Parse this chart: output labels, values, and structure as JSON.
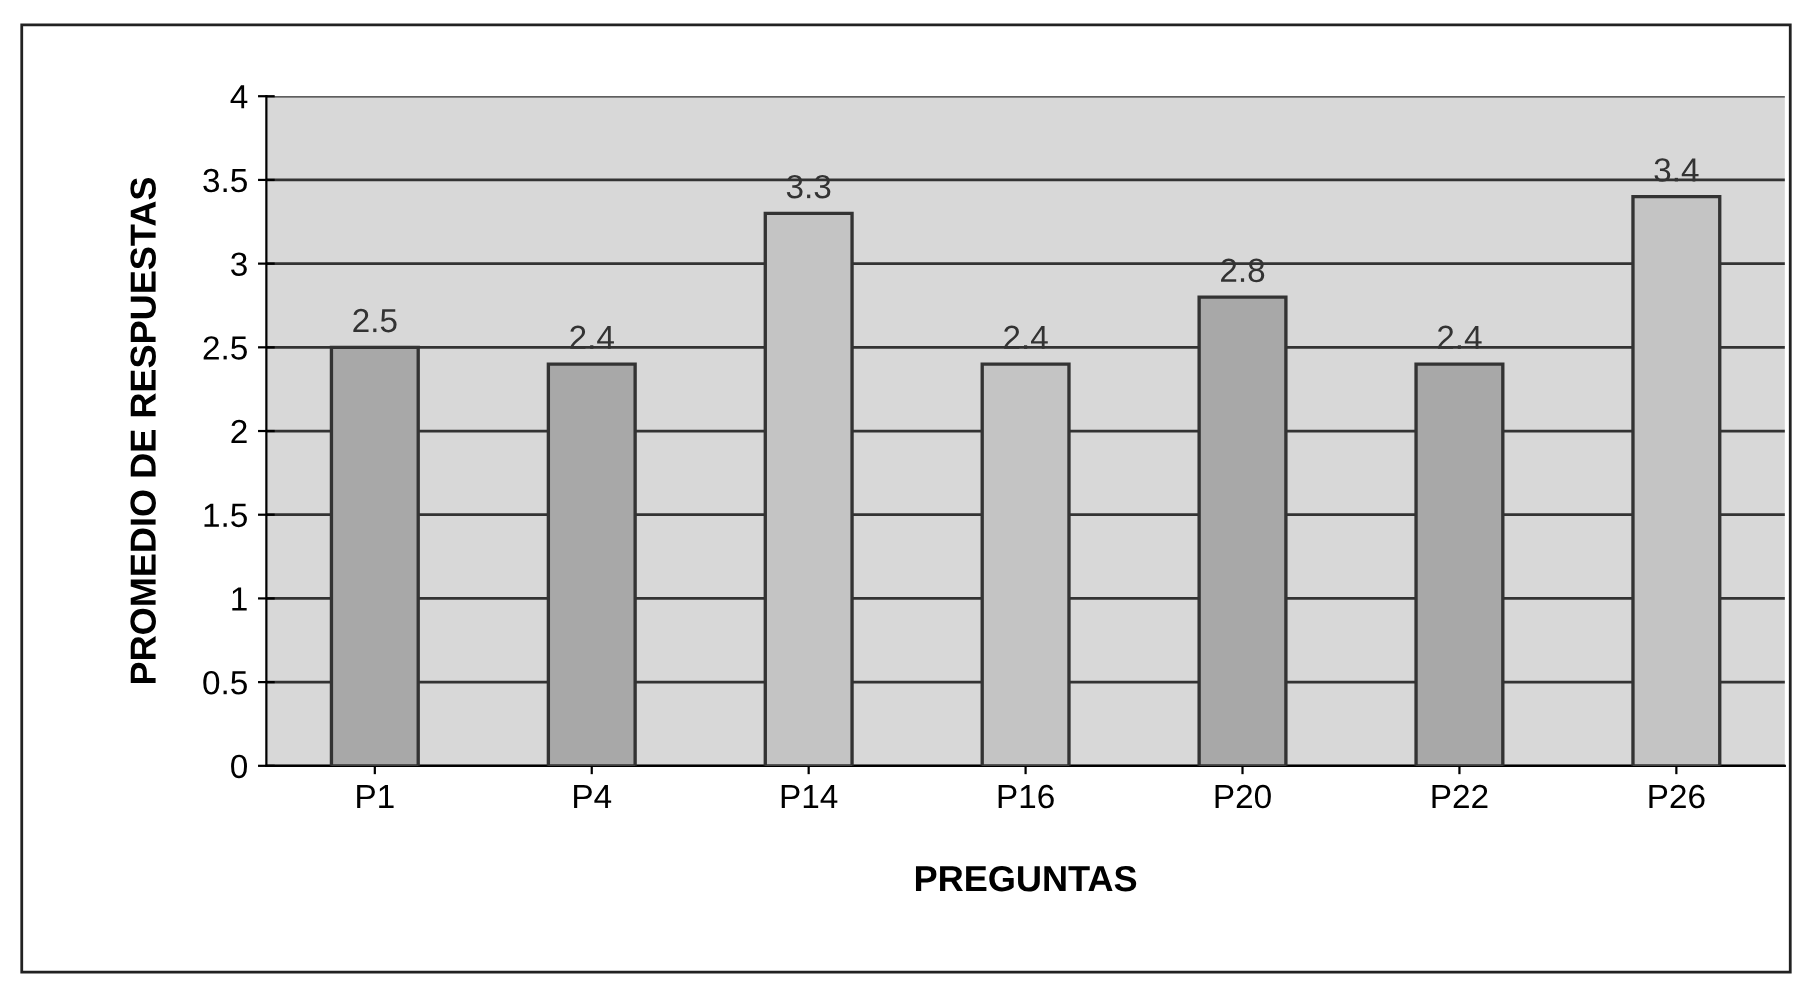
{
  "chart_data": {
    "type": "bar",
    "xlabel": "PREGUNTAS",
    "ylabel": "PROMEDIO DE RESPUESTAS",
    "categories": [
      "P1",
      "P4",
      "P14",
      "P16",
      "P20",
      "P22",
      "P26"
    ],
    "values": [
      2.5,
      2.4,
      3.3,
      2.4,
      2.8,
      2.4,
      3.4
    ],
    "colors": [
      "#a8a8a8",
      "#a8a8a8",
      "#c4c4c4",
      "#c4c4c4",
      "#a8a8a8",
      "#a8a8a8",
      "#c4c4c4"
    ],
    "ylim": [
      0,
      4
    ],
    "yticks": [
      0,
      0.5,
      1,
      1.5,
      2,
      2.5,
      3,
      3.5,
      4
    ],
    "grid": "y",
    "data_labels": true
  }
}
